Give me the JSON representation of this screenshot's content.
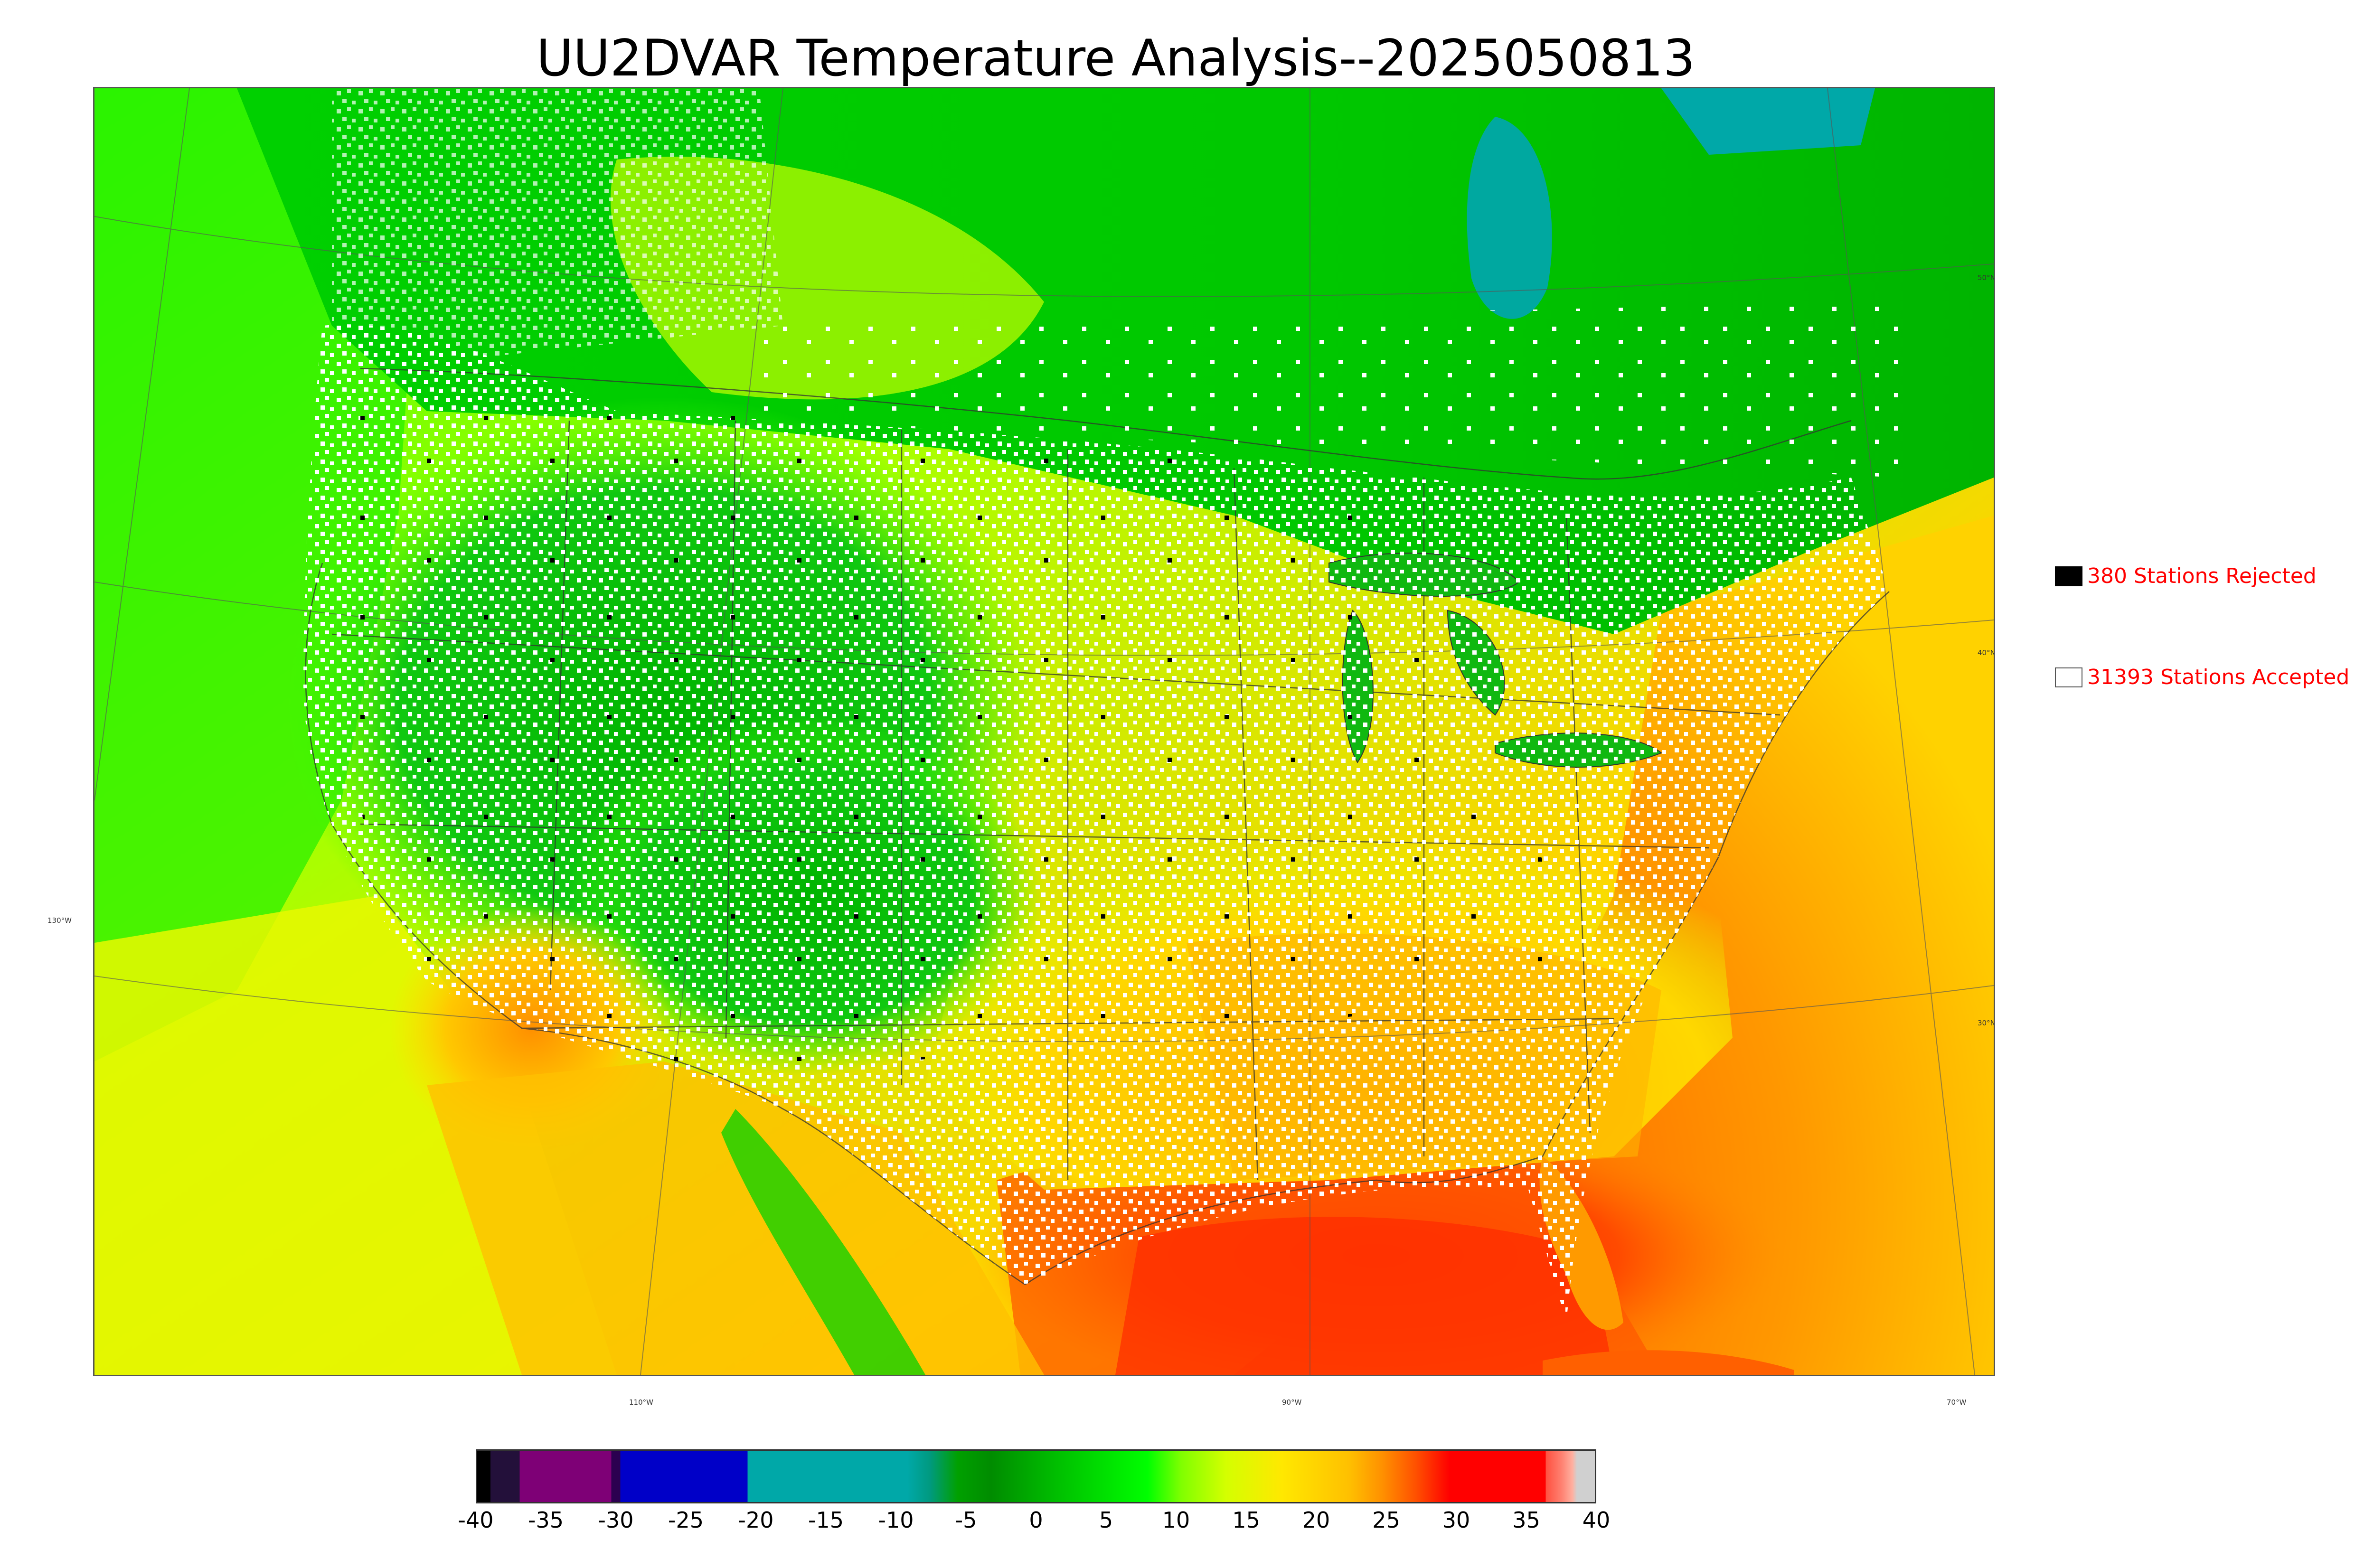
{
  "title": "UU2DVAR Temperature Analysis--2025050813",
  "legend": {
    "rejected": {
      "text": "380 Stations Rejected",
      "swatch": "#000000"
    },
    "accepted": {
      "text": "31393 Stations Accepted",
      "swatch": "#ffffff"
    }
  },
  "graticule": {
    "latitudes": [
      "50°N",
      "40°N",
      "30°N"
    ],
    "longitudes": [
      "130°W",
      "110°W",
      "90°W",
      "70°W"
    ]
  },
  "colorbar": {
    "ticks": [
      "-40",
      "-35",
      "-30",
      "-25",
      "-20",
      "-15",
      "-10",
      "-5",
      "0",
      "5",
      "10",
      "15",
      "20",
      "25",
      "30",
      "35",
      "40"
    ],
    "stops": [
      "#000000",
      "#23103a",
      "#7e0076",
      "#0000c8",
      "#00a8a8",
      "#00a0a0",
      "#008c00",
      "#00ff00",
      "#d4ff00",
      "#ffd000",
      "#ff9000",
      "#ff0000",
      "#ff8070",
      "#d0d0d0"
    ]
  },
  "colors": {
    "accent_text": "#ff0000",
    "ocean_warm": "#ff7a00",
    "land_cool": "#10c010",
    "land_warm": "#ffd000"
  }
}
